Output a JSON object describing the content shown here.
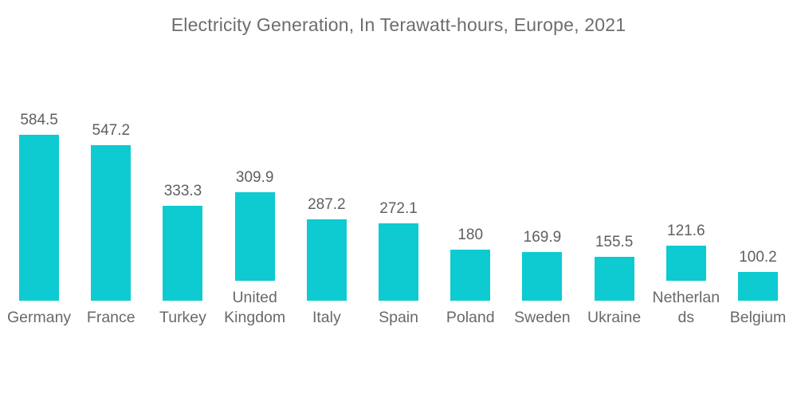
{
  "chart_data": {
    "type": "bar",
    "title": "Electricity Generation, In Terawatt-hours, Europe, 2021",
    "categories": [
      "Germany",
      "France",
      "Turkey",
      "United Kingdom",
      "Italy",
      "Spain",
      "Poland",
      "Sweden",
      "Ukraine",
      "Netherlands",
      "Belgium"
    ],
    "values": [
      584.5,
      547.2,
      333.3,
      309.9,
      287.2,
      272.1,
      180,
      169.9,
      155.5,
      121.6,
      100.2
    ],
    "value_labels": [
      "584.5",
      "547.2",
      "333.3",
      "309.9",
      "287.2",
      "272.1",
      "180",
      "169.9",
      "155.5",
      "121.6",
      "100.2"
    ],
    "xlabel": "",
    "ylabel": "",
    "ylim": [
      0,
      650
    ],
    "grid": false,
    "legend": false,
    "data_labels_position": "above-bar",
    "colors": {
      "bar": "#0dcbd1",
      "title": "#6d6d6d",
      "category_label": "#696969",
      "value_label": "#5f5f5f",
      "background": "#ffffff"
    }
  }
}
